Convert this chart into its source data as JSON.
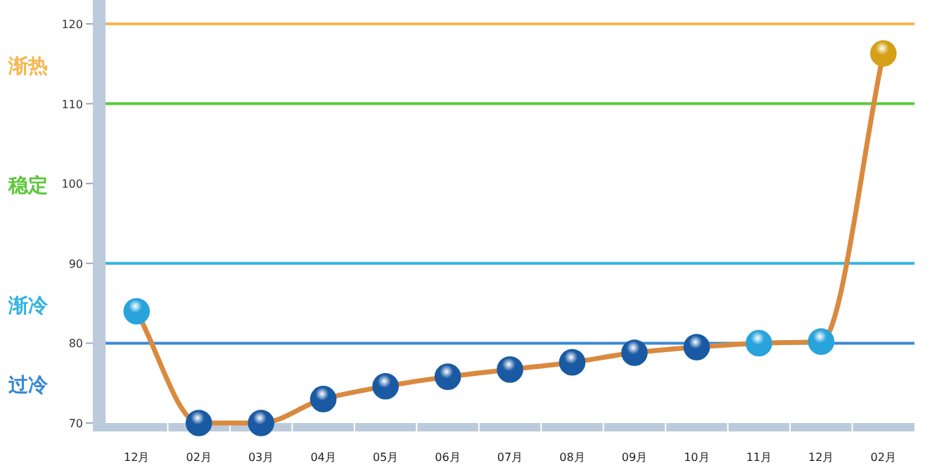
{
  "chart_data": {
    "type": "line",
    "categories": [
      "12月",
      "02月",
      "03月",
      "04月",
      "05月",
      "06月",
      "07月",
      "08月",
      "09月",
      "10月",
      "11月",
      "12月",
      "02月"
    ],
    "series": [
      {
        "color": "#d98a3f",
        "values": [
          84,
          70,
          70,
          73,
          74.6,
          75.8,
          76.7,
          77.6,
          78.8,
          79.5,
          80,
          80.2,
          116.3
        ],
        "colors": [
          "#29a3dc",
          "#1a5aa3",
          "#1a5aa3",
          "#1a5aa3",
          "#1a5aa3",
          "#1a5aa3",
          "#1a5aa3",
          "#1a5aa3",
          "#1a5aa3",
          "#1a5aa3",
          "#29a3dc",
          "#29a3dc",
          "#d4a017"
        ]
      }
    ],
    "ylim": [
      70,
      120
    ],
    "yticks": [
      70,
      80,
      90,
      100,
      110,
      120
    ],
    "marker": "circle",
    "line_style": "solid",
    "grid": false,
    "ref_lines": [
      {
        "axis": "y",
        "value": 120,
        "color": "#f5b650"
      },
      {
        "axis": "y",
        "value": 110,
        "color": "#5cc83c"
      },
      {
        "axis": "y",
        "value": 90,
        "color": "#33b5de"
      },
      {
        "axis": "y",
        "value": 80,
        "color": "#3a8ad6"
      }
    ],
    "annotations": [
      "渐热",
      "稳定",
      "渐冷",
      "过冷"
    ]
  }
}
